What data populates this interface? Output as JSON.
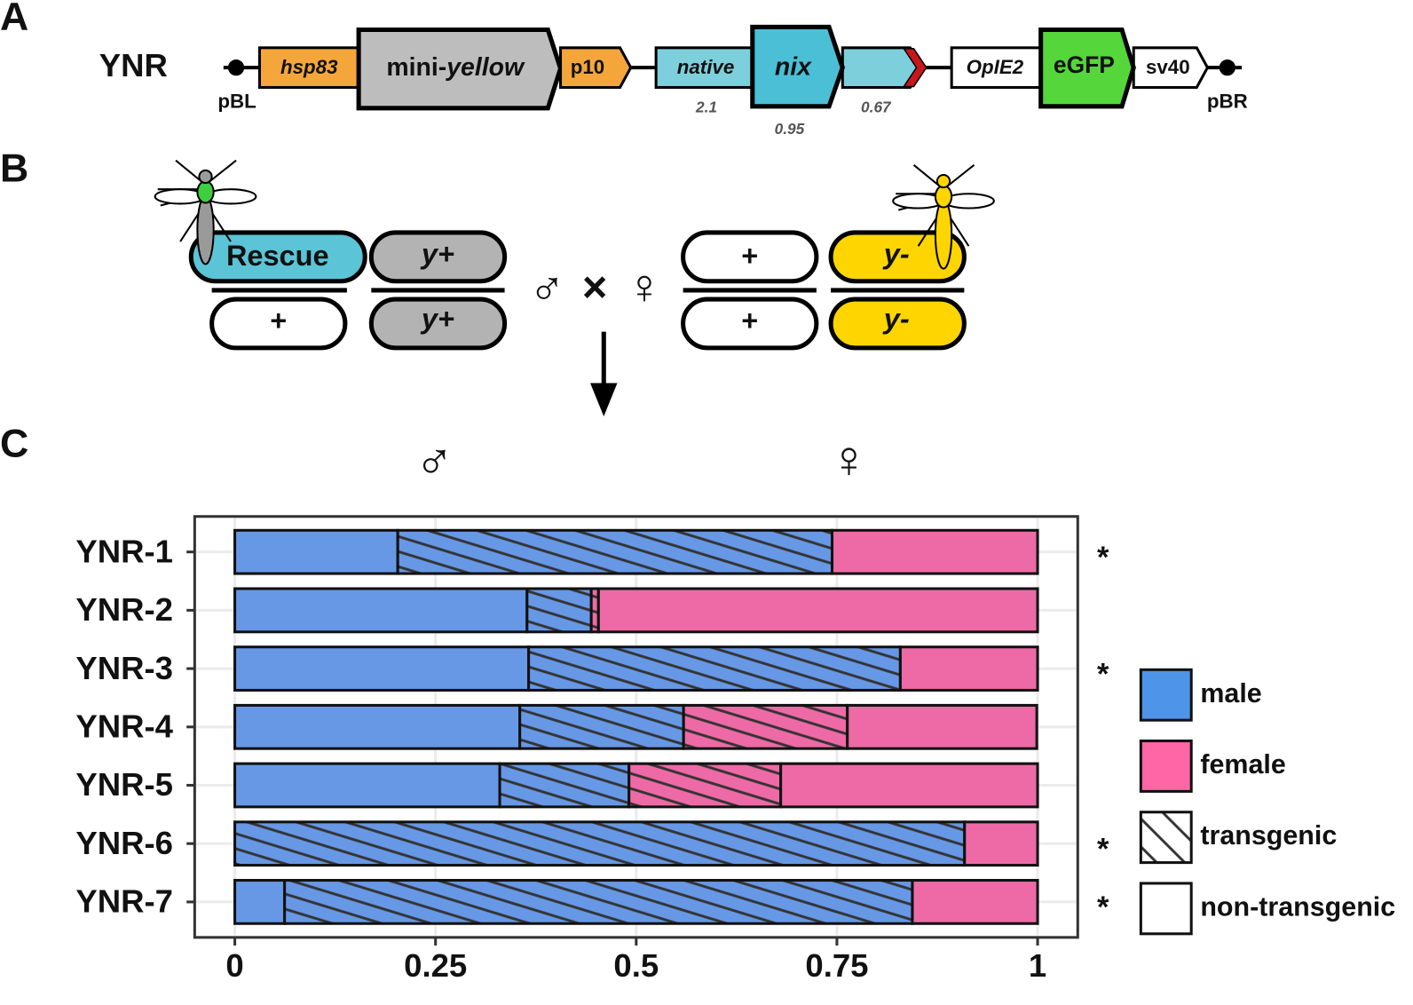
{
  "panel_labels": [
    "A",
    "B",
    "C"
  ],
  "construct": {
    "name": "YNR",
    "left_end": "pBL",
    "right_end": "pBR",
    "elements": [
      "hsp83",
      [
        "mini-",
        "yellow"
      ],
      "p10",
      "native",
      "nix",
      "OpIE2",
      "eGFP",
      "sv40"
    ],
    "lengths": [
      "2.1",
      "0.95",
      "0.67"
    ]
  },
  "cross": {
    "parent1_top": [
      "Rescue",
      "y+"
    ],
    "parent1_bottom": [
      "+",
      "y+"
    ],
    "symbols": [
      "♂",
      "×",
      "♀"
    ],
    "parent2_top": [
      "+",
      "y-"
    ],
    "parent2_bottom": [
      "+",
      "y-"
    ]
  },
  "chart_data": {
    "type": "bar",
    "orientation": "horizontal",
    "stacked": true,
    "headers": [
      "♂",
      "♀"
    ],
    "categories": [
      "YNR-1",
      "YNR-2",
      "YNR-3",
      "YNR-4",
      "YNR-5",
      "YNR-6",
      "YNR-7"
    ],
    "series": [
      {
        "color": "#6798e6",
        "hatch": false,
        "values": [
          0.203,
          0.364,
          0.366,
          0.355,
          0.33,
          0,
          0.062
        ]
      },
      {
        "color": "#6798e6",
        "hatch": true,
        "values": [
          0.541,
          0.08,
          0.463,
          0.204,
          0.161,
          0.909,
          0.782
        ]
      },
      {
        "color": "#ee6aa6",
        "hatch": true,
        "values": [
          0,
          0.009,
          0,
          0.204,
          0.189,
          0,
          0
        ]
      },
      {
        "color": "#ee6aa6",
        "hatch": false,
        "values": [
          0.256,
          0.547,
          0.171,
          0.236,
          0.32,
          0.091,
          0.156
        ]
      }
    ],
    "annotations": [
      "*",
      null,
      "*",
      null,
      null,
      "*",
      "*"
    ],
    "xlim": [
      -0.05,
      1.05
    ],
    "xticks": [
      0,
      0.25,
      0.5,
      0.75,
      1
    ],
    "grid": true,
    "legend": {
      "position": "right",
      "entries": [
        {
          "label": "male",
          "color": "#4e95ea"
        },
        {
          "label": "female",
          "color": "#ff66a6"
        },
        {
          "label": "transgenic",
          "hatch": true
        },
        {
          "label": "non-transgenic"
        }
      ]
    }
  }
}
